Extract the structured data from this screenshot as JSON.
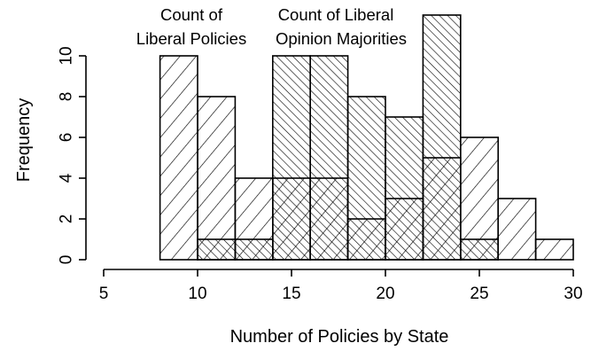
{
  "chart_data": {
    "type": "histogram",
    "title": "",
    "xlabel": "Number of Policies by State",
    "ylabel": "Frequency",
    "xlim": [
      5,
      30
    ],
    "ylim": [
      0,
      12
    ],
    "x_ticks": [
      5,
      10,
      15,
      20,
      25,
      30
    ],
    "y_ticks": [
      0,
      2,
      4,
      6,
      8,
      10
    ],
    "grid": false,
    "legend": "none",
    "annotations": [
      {
        "lines": [
          "Count of",
          "Liberal Policies"
        ]
      },
      {
        "lines": [
          "Count of Liberal",
          "Opinion Majorities"
        ]
      }
    ],
    "series": [
      {
        "fill_pattern": "diagonal-lines-sparse",
        "bins": [
          {
            "x0": 8,
            "x1": 10,
            "count": 10
          },
          {
            "x0": 10,
            "x1": 12,
            "count": 8
          },
          {
            "x0": 12,
            "x1": 14,
            "count": 4
          },
          {
            "x0": 14,
            "x1": 16,
            "count": 4
          },
          {
            "x0": 16,
            "x1": 18,
            "count": 4
          },
          {
            "x0": 18,
            "x1": 20,
            "count": 2
          },
          {
            "x0": 20,
            "x1": 22,
            "count": 3
          },
          {
            "x0": 22,
            "x1": 24,
            "count": 5
          },
          {
            "x0": 24,
            "x1": 26,
            "count": 6
          },
          {
            "x0": 26,
            "x1": 28,
            "count": 3
          },
          {
            "x0": 28,
            "x1": 30,
            "count": 1
          }
        ]
      },
      {
        "fill_pattern": "backslash-lines-dense",
        "bins": [
          {
            "x0": 10,
            "x1": 12,
            "count": 1
          },
          {
            "x0": 12,
            "x1": 14,
            "count": 1
          },
          {
            "x0": 14,
            "x1": 16,
            "count": 10
          },
          {
            "x0": 16,
            "x1": 18,
            "count": 10
          },
          {
            "x0": 18,
            "x1": 20,
            "count": 8
          },
          {
            "x0": 20,
            "x1": 22,
            "count": 7
          },
          {
            "x0": 22,
            "x1": 24,
            "count": 12
          },
          {
            "x0": 24,
            "x1": 26,
            "count": 1
          }
        ]
      }
    ]
  }
}
